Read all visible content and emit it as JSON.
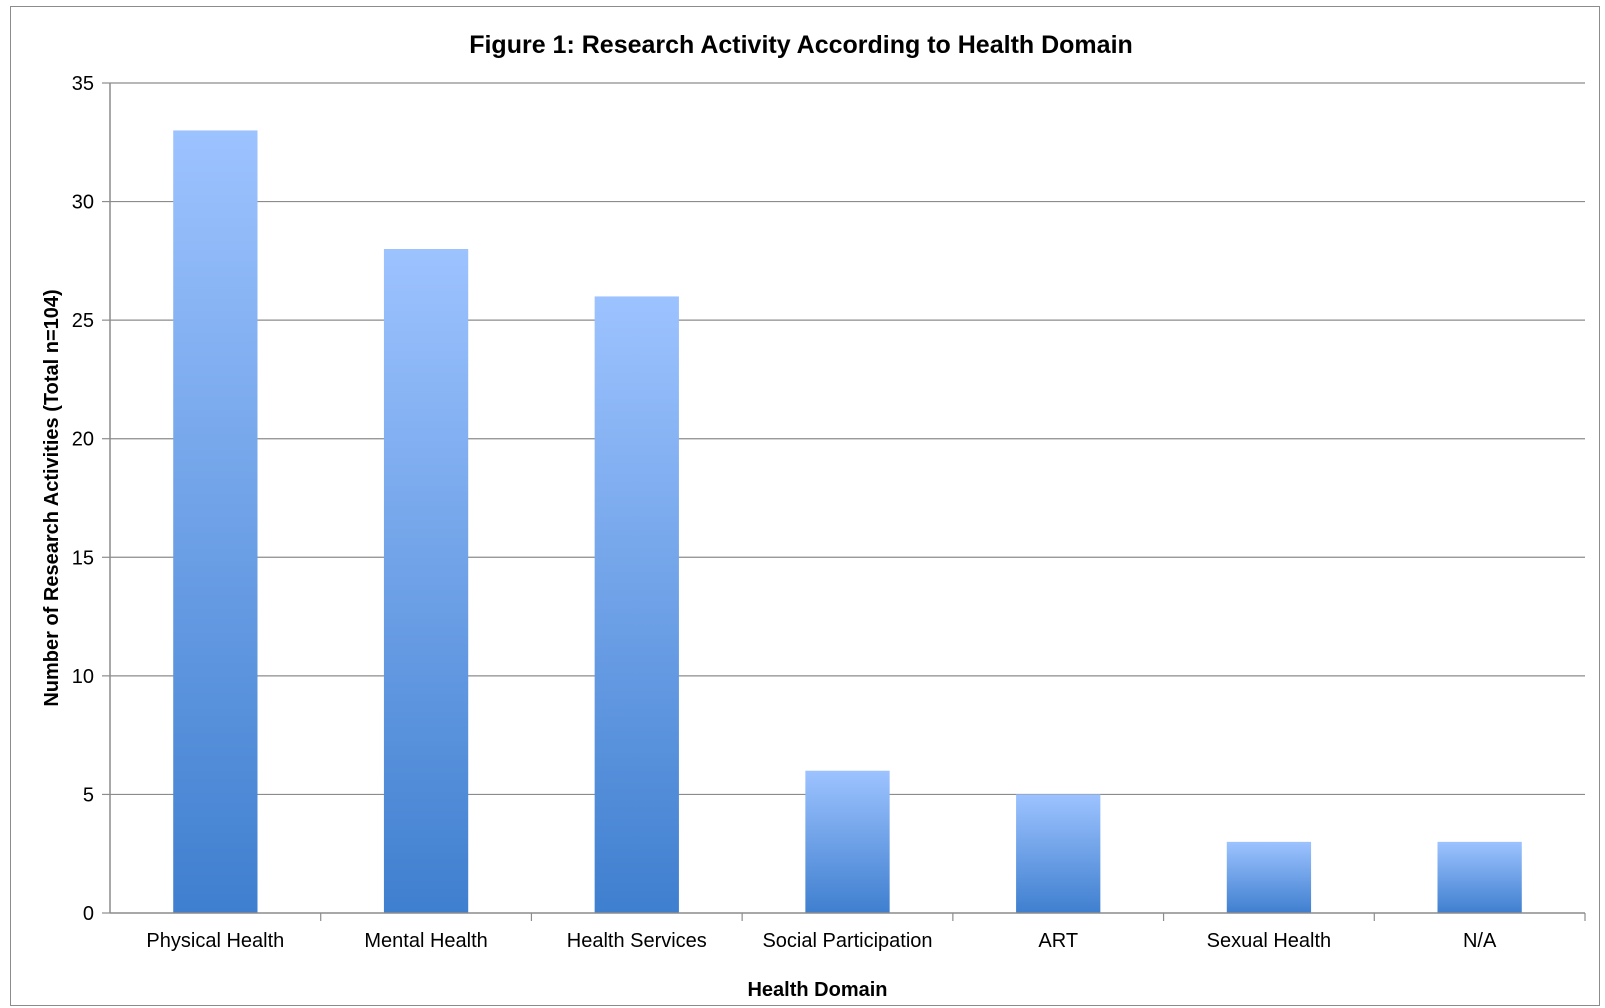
{
  "chart_data": {
    "type": "bar",
    "title": "Figure 1: Research Activity According to Health Domain",
    "xlabel": "Health Domain",
    "ylabel": "Number of Research Activities (Total n=104)",
    "categories": [
      "Physical Health",
      "Mental Health",
      "Health Services",
      "Social Participation",
      "ART",
      "Sexual Health",
      "N/A"
    ],
    "values": [
      33,
      28,
      26,
      6,
      5,
      3,
      3
    ],
    "ylim": [
      0,
      35
    ],
    "yticks": [
      0,
      5,
      10,
      15,
      20,
      25,
      30,
      35
    ],
    "grid": true,
    "legend": "none",
    "colors": {
      "bar_top": "#9DC3FF",
      "bar_bottom": "#3F7FCF",
      "grid": "#8c8c8c"
    }
  }
}
